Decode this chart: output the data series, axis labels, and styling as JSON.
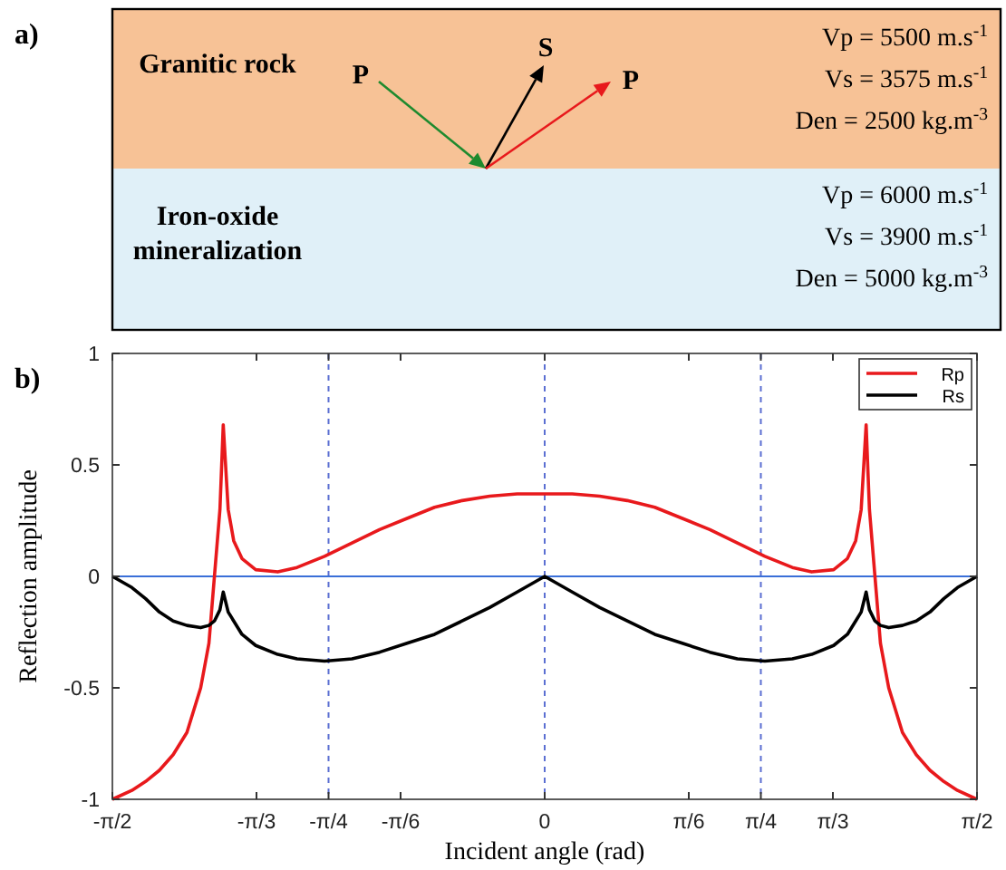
{
  "chart_data": [
    {
      "type": "other",
      "title": "a)",
      "annotations": [
        "Granitic rock",
        "Iron-oxide mineralization",
        "P",
        "S",
        "P",
        "Vp = 5500 m.s$^{-1}$",
        "Vs = 3575 m.s$^{-1}$",
        "Den = 2500 kg.m$^{-3}$",
        "Vp = 6000 m.s$^{-1}$",
        "Vs = 3900 m.s$^{-1}$",
        "Den = 5000 kg.m$^{-3}$"
      ]
    },
    {
      "type": "line",
      "title": "b)",
      "xlabel": "Incident angle (rad)",
      "ylabel": "Reflection amplitude",
      "x": [
        -1.5708,
        -1.5,
        -1.45,
        -1.4,
        -1.35,
        -1.3,
        -1.25,
        -1.22,
        -1.2,
        -1.18,
        -1.168,
        -1.15,
        -1.13,
        -1.1,
        -1.05,
        -0.97,
        -0.9,
        -0.8,
        -0.7,
        -0.6,
        -0.5,
        -0.4,
        -0.3,
        -0.2,
        -0.1,
        0,
        0.1,
        0.2,
        0.3,
        0.4,
        0.5,
        0.6,
        0.7,
        0.8,
        0.9,
        0.97,
        1.05,
        1.1,
        1.13,
        1.15,
        1.168,
        1.18,
        1.2,
        1.22,
        1.25,
        1.3,
        1.35,
        1.4,
        1.45,
        1.5,
        1.5708
      ],
      "series": [
        {
          "name": "Rp",
          "color": "#e8191c",
          "values": [
            -1,
            -0.96,
            -0.92,
            -0.87,
            -0.8,
            -0.7,
            -0.5,
            -0.3,
            0,
            0.3,
            0.68,
            0.3,
            0.16,
            0.08,
            0.03,
            0.02,
            0.04,
            0.09,
            0.15,
            0.21,
            0.26,
            0.31,
            0.34,
            0.36,
            0.37,
            0.37,
            0.37,
            0.36,
            0.34,
            0.31,
            0.26,
            0.21,
            0.15,
            0.09,
            0.04,
            0.02,
            0.03,
            0.08,
            0.16,
            0.3,
            0.68,
            0.3,
            0,
            -0.3,
            -0.5,
            -0.7,
            -0.8,
            -0.87,
            -0.92,
            -0.96,
            -1
          ]
        },
        {
          "name": "Rs",
          "color": "#000000",
          "values": [
            0,
            -0.05,
            -0.1,
            -0.16,
            -0.2,
            -0.22,
            -0.23,
            -0.22,
            -0.2,
            -0.15,
            -0.07,
            -0.16,
            -0.2,
            -0.26,
            -0.31,
            -0.35,
            -0.37,
            -0.38,
            -0.37,
            -0.34,
            -0.3,
            -0.26,
            -0.2,
            -0.14,
            -0.07,
            0,
            -0.07,
            -0.14,
            -0.2,
            -0.26,
            -0.3,
            -0.34,
            -0.37,
            -0.38,
            -0.37,
            -0.35,
            -0.31,
            -0.26,
            -0.2,
            -0.16,
            -0.07,
            -0.15,
            -0.2,
            -0.22,
            -0.23,
            -0.22,
            -0.2,
            -0.16,
            -0.1,
            -0.05,
            0
          ]
        }
      ],
      "xlim": [
        -1.5708,
        1.5708
      ],
      "ylim": [
        -1,
        1
      ],
      "xticks": [
        {
          "value": -1.5708,
          "label": "-π/2"
        },
        {
          "value": -1.0472,
          "label": "-π/3"
        },
        {
          "value": -0.7854,
          "label": "-π/4"
        },
        {
          "value": -0.5236,
          "label": "-π/6"
        },
        0,
        {
          "value": 0.5236,
          "label": "π/6"
        },
        {
          "value": 0.7854,
          "label": "π/4"
        },
        {
          "value": 1.0472,
          "label": "π/3"
        },
        {
          "value": 1.5708,
          "label": "π/2"
        }
      ],
      "yticks": [
        -1,
        -0.5,
        0,
        0.5,
        1
      ],
      "ref_lines": [
        {
          "axis": "x",
          "value": -0.7854,
          "color": "#5b6fd2",
          "line_style": "dashed"
        },
        {
          "axis": "x",
          "value": 0,
          "color": "#5b6fd2",
          "line_style": "dashed"
        },
        {
          "axis": "x",
          "value": 0.7854,
          "color": "#5b6fd2",
          "line_style": "dashed"
        },
        {
          "axis": "y",
          "value": 0,
          "color": "#3a6fd8",
          "line_style": "solid"
        }
      ],
      "grid": false,
      "legend": "top right",
      "line_style": "solid",
      "marker": "none"
    }
  ]
}
